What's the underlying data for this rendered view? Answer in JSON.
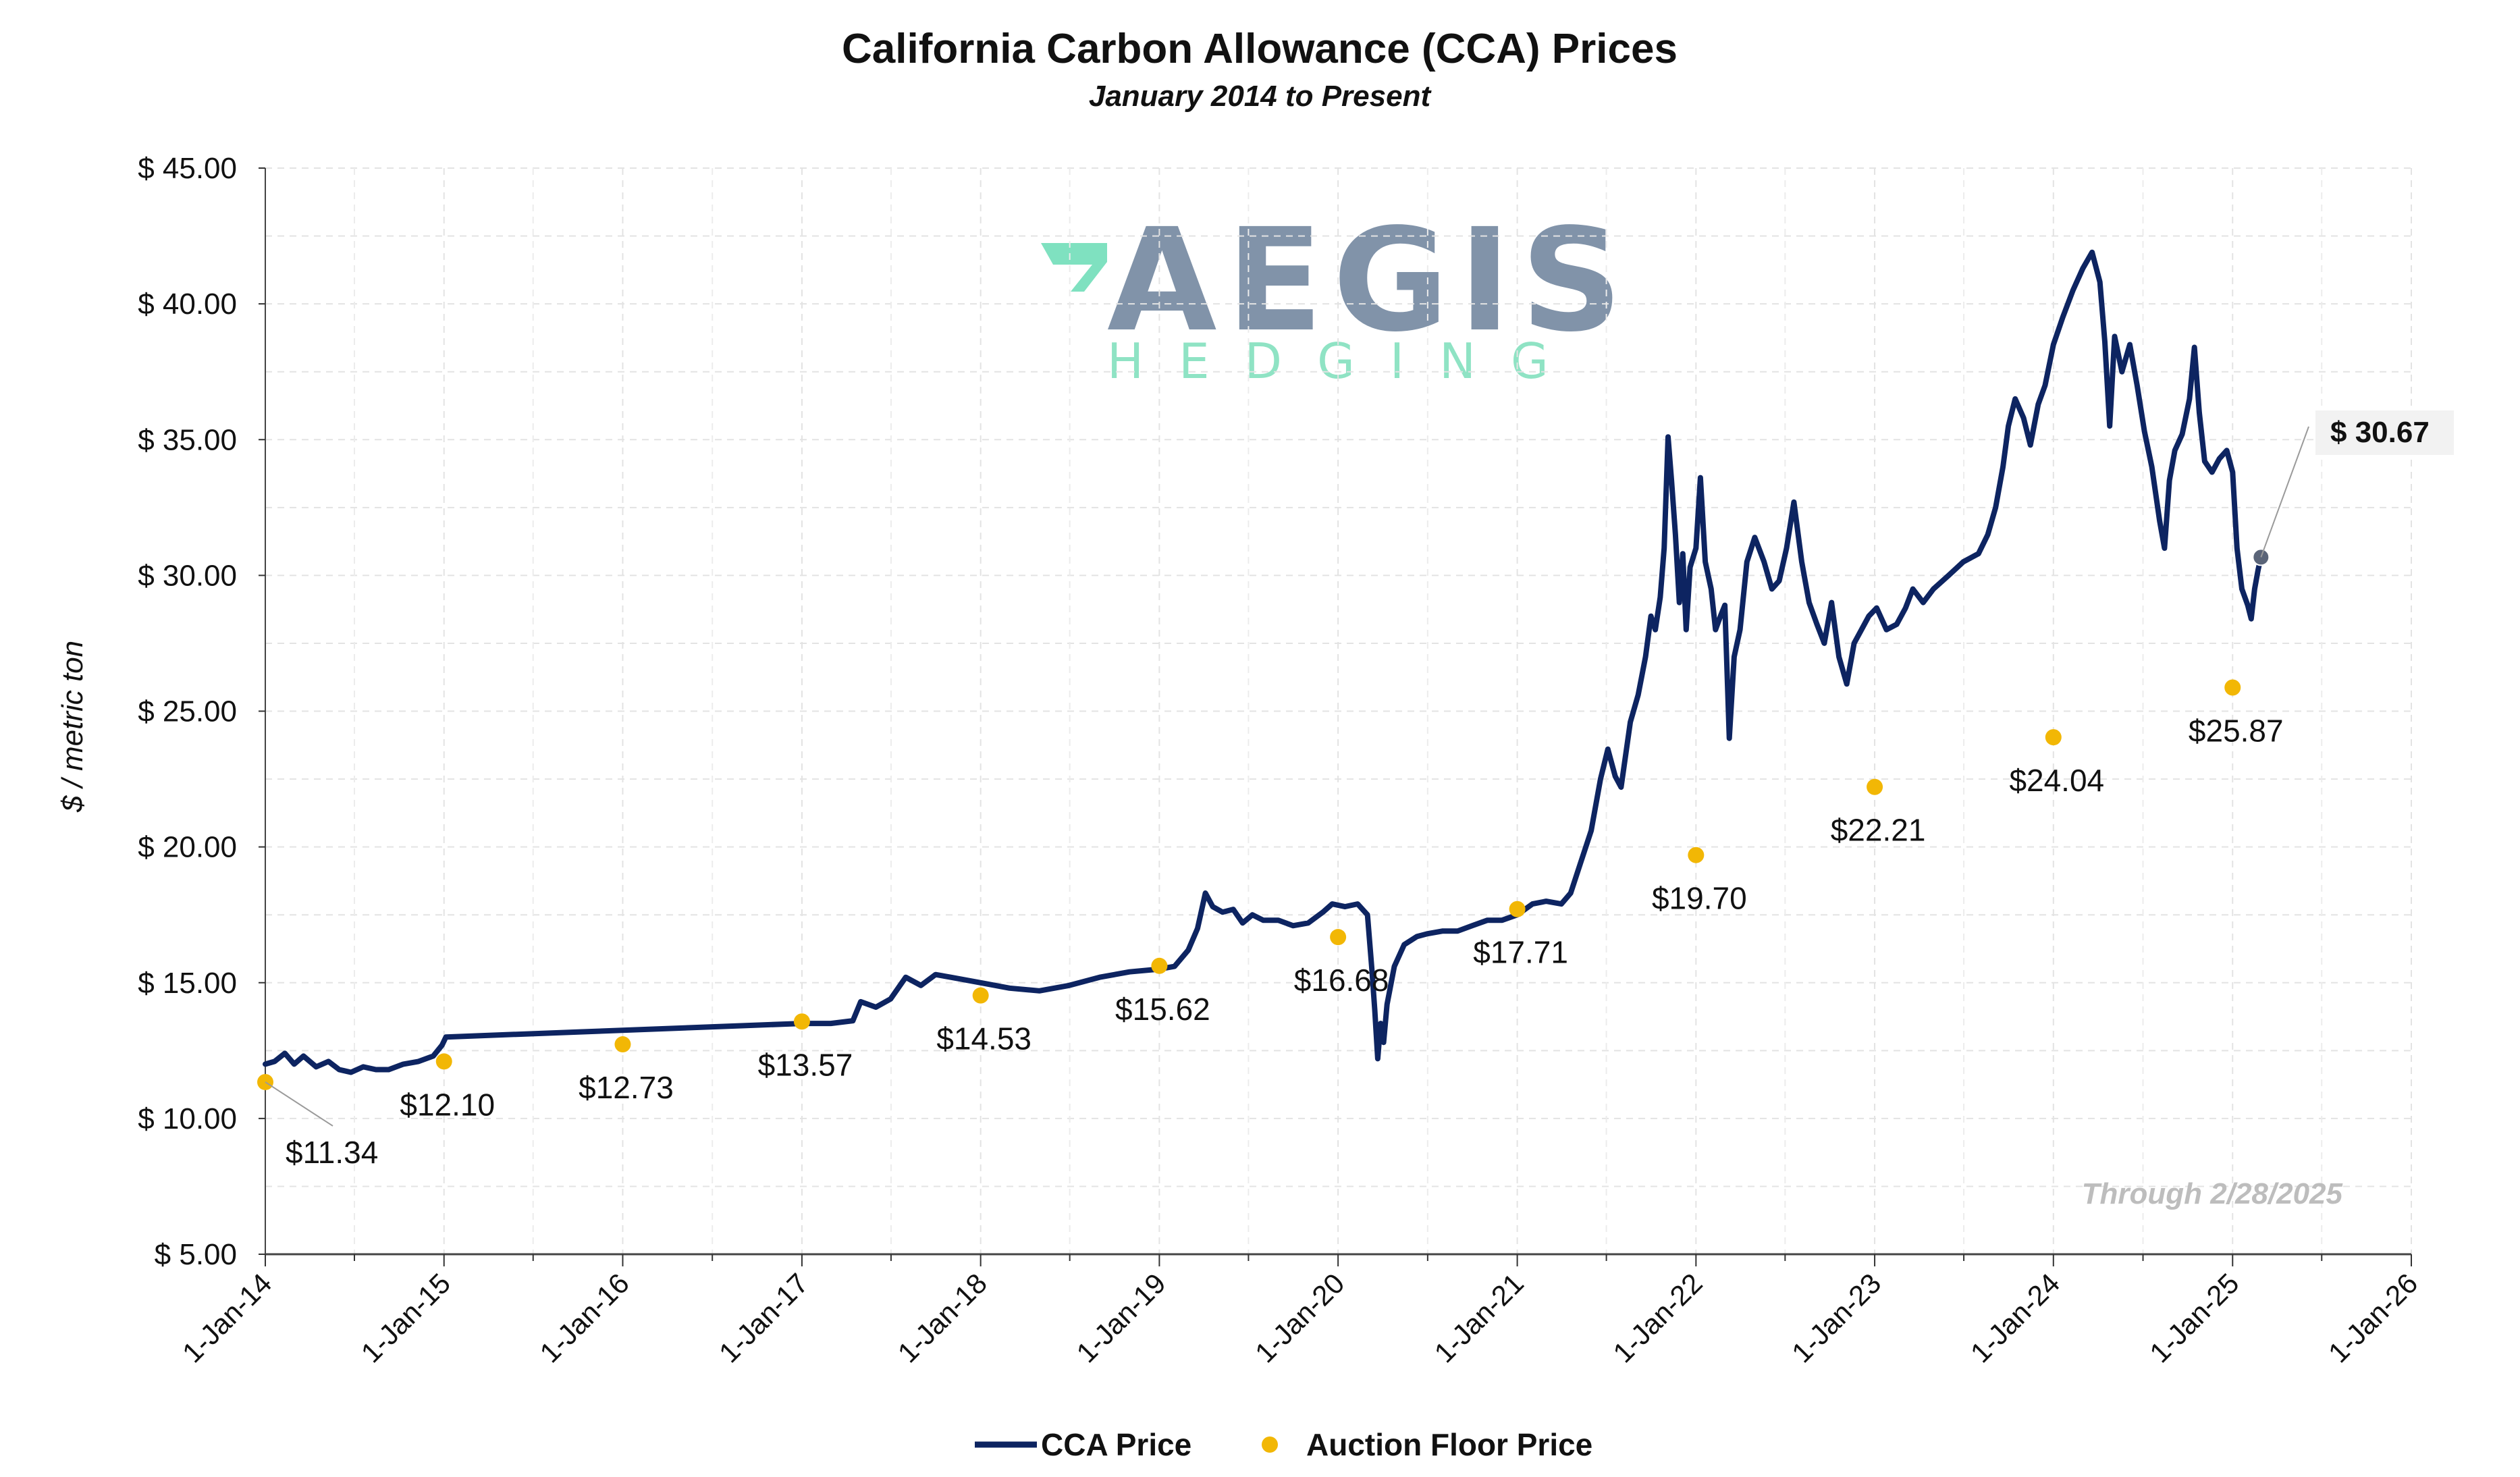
{
  "chart_data": {
    "type": "line",
    "title": "California Carbon Allowance (CCA) Prices",
    "subtitle": "January 2014 to Present",
    "ylabel": "$ / metric ton",
    "xlabel": "",
    "ylim": [
      5,
      45
    ],
    "xlim": [
      "2014-01-01",
      "2026-01-01"
    ],
    "y_ticks": [
      "$ 5.00",
      "$ 10.00",
      "$ 15.00",
      "$ 20.00",
      "$ 25.00",
      "$ 30.00",
      "$ 35.00",
      "$ 40.00",
      "$ 45.00"
    ],
    "x_ticks": [
      "1-Jan-14",
      "1-Jan-15",
      "1-Jan-16",
      "1-Jan-17",
      "1-Jan-18",
      "1-Jan-19",
      "1-Jan-20",
      "1-Jan-21",
      "1-Jan-22",
      "1-Jan-23",
      "1-Jan-24",
      "1-Jan-25",
      "1-Jan-26"
    ],
    "grid": true,
    "legend_position": "bottom",
    "annotation": "Through 2/28/2025",
    "last_value_label": "$ 30.67",
    "series": [
      {
        "name": "CCA Price",
        "color": "#0d2461",
        "points": [
          [
            "2014-01-01",
            12.0
          ],
          [
            "2014-01-20",
            12.1
          ],
          [
            "2014-02-10",
            12.4
          ],
          [
            "2014-03-01",
            12.0
          ],
          [
            "2014-03-20",
            12.3
          ],
          [
            "2014-04-15",
            11.9
          ],
          [
            "2014-05-10",
            12.1
          ],
          [
            "2014-06-01",
            11.8
          ],
          [
            "2014-06-25",
            11.7
          ],
          [
            "2014-07-20",
            11.9
          ],
          [
            "2014-08-15",
            11.8
          ],
          [
            "2014-09-10",
            11.8
          ],
          [
            "2014-10-10",
            12.0
          ],
          [
            "2014-11-10",
            12.1
          ],
          [
            "2014-12-10",
            12.3
          ],
          [
            "2014-12-28",
            12.7
          ],
          [
            "2015-01-05",
            13.0
          ],
          [
            "2017-01-01",
            13.5
          ],
          [
            "2017-03-01",
            13.5
          ],
          [
            "2017-04-15",
            13.6
          ],
          [
            "2017-05-01",
            14.3
          ],
          [
            "2017-06-01",
            14.1
          ],
          [
            "2017-07-01",
            14.4
          ],
          [
            "2017-08-01",
            15.2
          ],
          [
            "2017-09-01",
            14.9
          ],
          [
            "2017-10-01",
            15.3
          ],
          [
            "2017-11-01",
            15.2
          ],
          [
            "2017-12-01",
            15.1
          ],
          [
            "2018-01-01",
            15.0
          ],
          [
            "2018-03-01",
            14.8
          ],
          [
            "2018-05-01",
            14.7
          ],
          [
            "2018-07-01",
            14.9
          ],
          [
            "2018-09-01",
            15.2
          ],
          [
            "2018-11-01",
            15.4
          ],
          [
            "2019-01-01",
            15.5
          ],
          [
            "2019-02-01",
            15.6
          ],
          [
            "2019-03-01",
            16.2
          ],
          [
            "2019-03-20",
            17.0
          ],
          [
            "2019-04-05",
            18.3
          ],
          [
            "2019-04-20",
            17.8
          ],
          [
            "2019-05-10",
            17.6
          ],
          [
            "2019-06-01",
            17.7
          ],
          [
            "2019-06-20",
            17.2
          ],
          [
            "2019-07-10",
            17.5
          ],
          [
            "2019-08-01",
            17.3
          ],
          [
            "2019-09-01",
            17.3
          ],
          [
            "2019-10-01",
            17.1
          ],
          [
            "2019-11-01",
            17.2
          ],
          [
            "2019-12-01",
            17.6
          ],
          [
            "2019-12-20",
            17.9
          ],
          [
            "2020-01-15",
            17.8
          ],
          [
            "2020-02-10",
            17.9
          ],
          [
            "2020-03-01",
            17.5
          ],
          [
            "2020-03-10",
            15.5
          ],
          [
            "2020-03-16",
            14.0
          ],
          [
            "2020-03-22",
            12.2
          ],
          [
            "2020-03-28",
            13.5
          ],
          [
            "2020-04-03",
            12.8
          ],
          [
            "2020-04-10",
            14.2
          ],
          [
            "2020-04-25",
            15.6
          ],
          [
            "2020-05-15",
            16.4
          ],
          [
            "2020-06-10",
            16.7
          ],
          [
            "2020-07-01",
            16.8
          ],
          [
            "2020-08-01",
            16.9
          ],
          [
            "2020-09-01",
            16.9
          ],
          [
            "2020-10-01",
            17.1
          ],
          [
            "2020-11-01",
            17.3
          ],
          [
            "2020-12-01",
            17.3
          ],
          [
            "2021-01-01",
            17.5
          ],
          [
            "2021-02-01",
            17.9
          ],
          [
            "2021-03-01",
            18.0
          ],
          [
            "2021-04-01",
            17.9
          ],
          [
            "2021-04-20",
            18.3
          ],
          [
            "2021-05-10",
            19.4
          ],
          [
            "2021-06-01",
            20.6
          ],
          [
            "2021-06-20",
            22.5
          ],
          [
            "2021-07-05",
            23.6
          ],
          [
            "2021-07-20",
            22.6
          ],
          [
            "2021-08-01",
            22.2
          ],
          [
            "2021-08-20",
            24.6
          ],
          [
            "2021-09-05",
            25.6
          ],
          [
            "2021-09-20",
            27.0
          ],
          [
            "2021-10-01",
            28.5
          ],
          [
            "2021-10-10",
            28.0
          ],
          [
            "2021-10-20",
            29.2
          ],
          [
            "2021-10-28",
            31.0
          ],
          [
            "2021-11-05",
            35.1
          ],
          [
            "2021-11-12",
            33.5
          ],
          [
            "2021-11-20",
            31.5
          ],
          [
            "2021-11-28",
            29.0
          ],
          [
            "2021-12-05",
            30.8
          ],
          [
            "2021-12-12",
            28.0
          ],
          [
            "2021-12-20",
            30.3
          ],
          [
            "2022-01-01",
            31.0
          ],
          [
            "2022-01-10",
            33.6
          ],
          [
            "2022-01-20",
            30.5
          ],
          [
            "2022-02-01",
            29.5
          ],
          [
            "2022-02-10",
            28.0
          ],
          [
            "2022-02-20",
            28.5
          ],
          [
            "2022-03-01",
            28.9
          ],
          [
            "2022-03-10",
            24.0
          ],
          [
            "2022-03-20",
            27.0
          ],
          [
            "2022-04-01",
            28.0
          ],
          [
            "2022-04-15",
            30.5
          ],
          [
            "2022-05-01",
            31.4
          ],
          [
            "2022-05-20",
            30.5
          ],
          [
            "2022-06-05",
            29.5
          ],
          [
            "2022-06-20",
            29.8
          ],
          [
            "2022-07-05",
            31.0
          ],
          [
            "2022-07-20",
            32.7
          ],
          [
            "2022-08-05",
            30.5
          ],
          [
            "2022-08-20",
            29.0
          ],
          [
            "2022-09-05",
            28.2
          ],
          [
            "2022-09-20",
            27.5
          ],
          [
            "2022-10-05",
            29.0
          ],
          [
            "2022-10-20",
            27.0
          ],
          [
            "2022-11-05",
            26.0
          ],
          [
            "2022-11-20",
            27.5
          ],
          [
            "2022-12-05",
            28.0
          ],
          [
            "2022-12-20",
            28.5
          ],
          [
            "2023-01-05",
            28.8
          ],
          [
            "2023-01-25",
            28.0
          ],
          [
            "2023-02-15",
            28.2
          ],
          [
            "2023-03-05",
            28.8
          ],
          [
            "2023-03-20",
            29.5
          ],
          [
            "2023-04-10",
            29.0
          ],
          [
            "2023-05-01",
            29.5
          ],
          [
            "2023-06-01",
            30.0
          ],
          [
            "2023-07-01",
            30.5
          ],
          [
            "2023-08-01",
            30.8
          ],
          [
            "2023-08-20",
            31.5
          ],
          [
            "2023-09-05",
            32.5
          ],
          [
            "2023-09-20",
            34.0
          ],
          [
            "2023-10-01",
            35.5
          ],
          [
            "2023-10-15",
            36.5
          ],
          [
            "2023-11-01",
            35.8
          ],
          [
            "2023-11-15",
            34.8
          ],
          [
            "2023-12-01",
            36.3
          ],
          [
            "2023-12-15",
            37.0
          ],
          [
            "2024-01-01",
            38.5
          ],
          [
            "2024-01-20",
            39.5
          ],
          [
            "2024-02-10",
            40.5
          ],
          [
            "2024-03-01",
            41.3
          ],
          [
            "2024-03-20",
            41.9
          ],
          [
            "2024-04-05",
            40.8
          ],
          [
            "2024-04-15",
            38.6
          ],
          [
            "2024-04-25",
            35.5
          ],
          [
            "2024-05-05",
            38.8
          ],
          [
            "2024-05-20",
            37.5
          ],
          [
            "2024-06-05",
            38.5
          ],
          [
            "2024-06-20",
            37.0
          ],
          [
            "2024-07-05",
            35.3
          ],
          [
            "2024-07-20",
            34.0
          ],
          [
            "2024-08-05",
            32.0
          ],
          [
            "2024-08-15",
            31.0
          ],
          [
            "2024-08-25",
            33.5
          ],
          [
            "2024-09-05",
            34.6
          ],
          [
            "2024-09-20",
            35.2
          ],
          [
            "2024-10-05",
            36.5
          ],
          [
            "2024-10-15",
            38.4
          ],
          [
            "2024-10-25",
            36.0
          ],
          [
            "2024-11-05",
            34.2
          ],
          [
            "2024-11-20",
            33.8
          ],
          [
            "2024-12-05",
            34.3
          ],
          [
            "2024-12-20",
            34.6
          ],
          [
            "2025-01-01",
            33.8
          ],
          [
            "2025-01-10",
            31.0
          ],
          [
            "2025-01-20",
            29.5
          ],
          [
            "2025-02-01",
            28.9
          ],
          [
            "2025-02-08",
            28.4
          ],
          [
            "2025-02-15",
            29.5
          ],
          [
            "2025-02-22",
            30.2
          ],
          [
            "2025-02-28",
            30.67
          ]
        ]
      },
      {
        "name": "Auction Floor Price",
        "color": "#f2b705",
        "points": [
          [
            "2014-01-01",
            11.34,
            "$11.34"
          ],
          [
            "2015-01-01",
            12.1,
            "$12.10"
          ],
          [
            "2016-01-01",
            12.73,
            "$12.73"
          ],
          [
            "2017-01-01",
            13.57,
            "$13.57"
          ],
          [
            "2018-01-01",
            14.53,
            "$14.53"
          ],
          [
            "2019-01-01",
            15.62,
            "$15.62"
          ],
          [
            "2020-01-01",
            16.68,
            "$16.68"
          ],
          [
            "2021-01-01",
            17.71,
            "$17.71"
          ],
          [
            "2022-01-01",
            19.7,
            "$19.70"
          ],
          [
            "2023-01-01",
            22.21,
            "$22.21"
          ],
          [
            "2024-01-01",
            24.04,
            "$24.04"
          ],
          [
            "2025-01-01",
            25.87,
            "$25.87"
          ]
        ]
      }
    ]
  },
  "logo": {
    "name": "AEGIS",
    "tagline": "HEDGING"
  }
}
